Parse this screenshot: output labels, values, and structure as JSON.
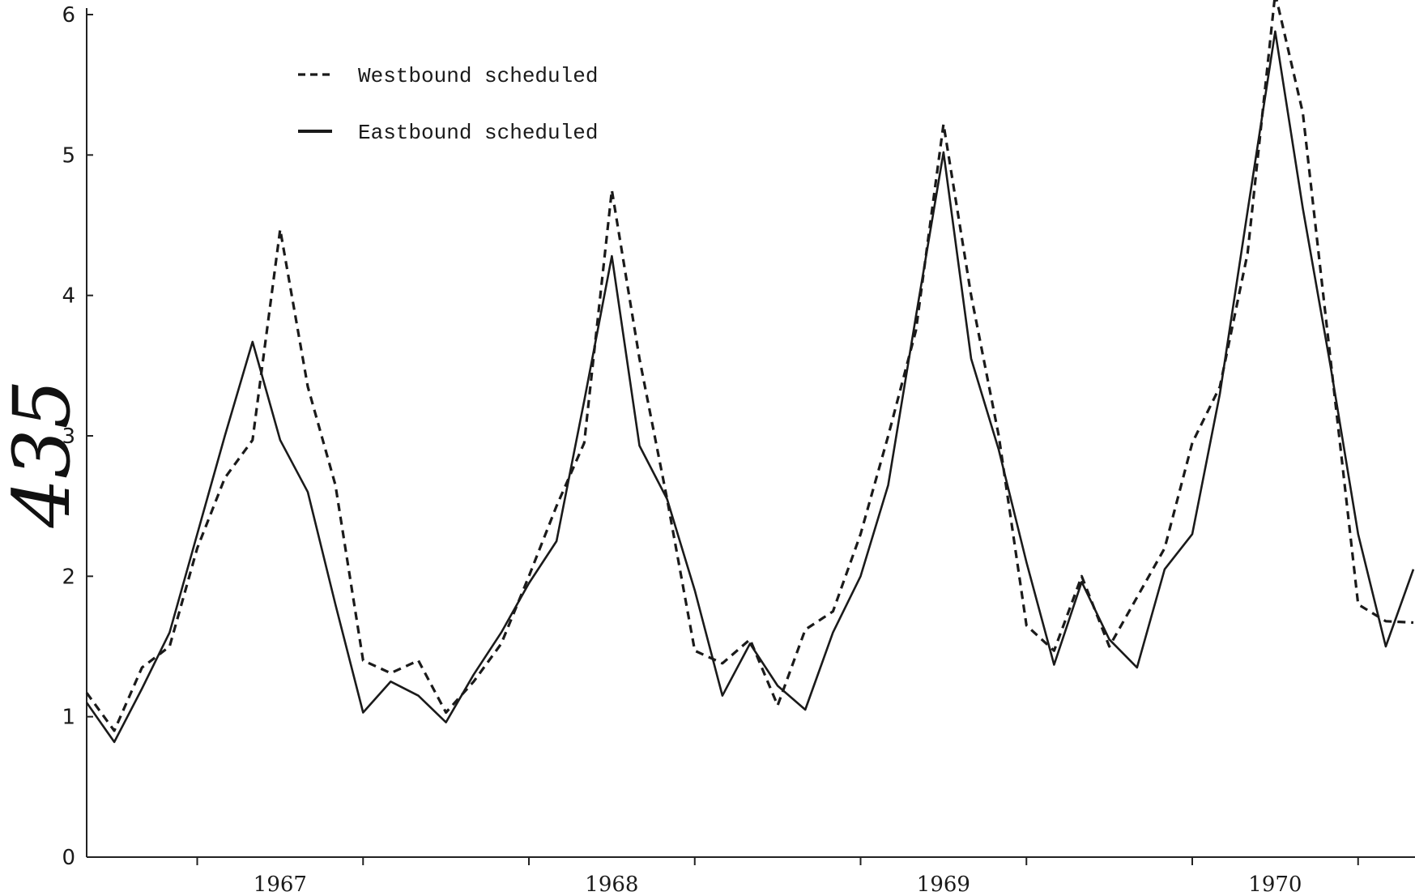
{
  "chart_data": {
    "type": "line",
    "title": "",
    "xlabel": "",
    "ylabel": "",
    "ylim": [
      0,
      6
    ],
    "yticks": [
      "0",
      "1",
      "2",
      "3",
      "4",
      "5",
      "6"
    ],
    "year_labels": [
      "1967",
      "1968",
      "1969",
      "1970"
    ],
    "grid": false,
    "legend_position": "top-left",
    "x_start": "1966-09",
    "x_end": "1970-09",
    "series": [
      {
        "name": "Westbound scheduled",
        "style": "dashed",
        "color": "#1a1a1a",
        "points": [
          [
            "1966-09",
            1.17
          ],
          [
            "1966-10",
            0.9
          ],
          [
            "1966-11",
            1.35
          ],
          [
            "1966-12",
            1.5
          ],
          [
            "1967-01",
            2.2
          ],
          [
            "1967-02",
            2.7
          ],
          [
            "1967-03",
            2.97
          ],
          [
            "1967-04",
            4.47
          ],
          [
            "1967-05",
            3.35
          ],
          [
            "1967-06",
            2.65
          ],
          [
            "1967-07",
            1.4
          ],
          [
            "1967-08",
            1.31
          ],
          [
            "1967-09",
            1.4
          ],
          [
            "1967-10",
            1.03
          ],
          [
            "1967-11",
            1.25
          ],
          [
            "1967-12",
            1.52
          ],
          [
            "1968-01",
            2.0
          ],
          [
            "1968-02",
            2.5
          ],
          [
            "1968-03",
            2.95
          ],
          [
            "1968-04",
            4.75
          ],
          [
            "1968-05",
            3.55
          ],
          [
            "1968-06",
            2.55
          ],
          [
            "1968-07",
            1.47
          ],
          [
            "1968-08",
            1.38
          ],
          [
            "1968-09",
            1.55
          ],
          [
            "1968-10",
            1.08
          ],
          [
            "1968-11",
            1.62
          ],
          [
            "1968-12",
            1.75
          ],
          [
            "1969-01",
            2.3
          ],
          [
            "1969-02",
            3.0
          ],
          [
            "1969-03",
            3.75
          ],
          [
            "1969-04",
            5.22
          ],
          [
            "1969-05",
            4.0
          ],
          [
            "1969-06",
            3.0
          ],
          [
            "1969-07",
            1.65
          ],
          [
            "1969-08",
            1.47
          ],
          [
            "1969-09",
            2.0
          ],
          [
            "1969-10",
            1.5
          ],
          [
            "1969-11",
            1.85
          ],
          [
            "1969-12",
            2.2
          ],
          [
            "1970-01",
            2.95
          ],
          [
            "1970-02",
            3.35
          ],
          [
            "1970-03",
            4.3
          ],
          [
            "1970-04",
            6.15
          ],
          [
            "1970-05",
            5.3
          ],
          [
            "1970-06",
            3.55
          ],
          [
            "1970-07",
            1.8
          ],
          [
            "1970-08",
            1.68
          ],
          [
            "1970-09",
            1.67
          ]
        ]
      },
      {
        "name": "Eastbound scheduled",
        "style": "solid",
        "color": "#1a1a1a",
        "points": [
          [
            "1966-09",
            1.1
          ],
          [
            "1966-10",
            0.82
          ],
          [
            "1966-11",
            1.2
          ],
          [
            "1966-12",
            1.6
          ],
          [
            "1967-01",
            2.3
          ],
          [
            "1967-02",
            3.0
          ],
          [
            "1967-03",
            3.67
          ],
          [
            "1967-04",
            2.97
          ],
          [
            "1967-05",
            2.6
          ],
          [
            "1967-06",
            1.8
          ],
          [
            "1967-07",
            1.03
          ],
          [
            "1967-08",
            1.25
          ],
          [
            "1967-09",
            1.15
          ],
          [
            "1967-10",
            0.96
          ],
          [
            "1967-11",
            1.3
          ],
          [
            "1967-12",
            1.6
          ],
          [
            "1968-01",
            1.95
          ],
          [
            "1968-02",
            2.25
          ],
          [
            "1968-03",
            3.25
          ],
          [
            "1968-04",
            4.28
          ],
          [
            "1968-05",
            2.93
          ],
          [
            "1968-06",
            2.55
          ],
          [
            "1968-07",
            1.9
          ],
          [
            "1968-08",
            1.15
          ],
          [
            "1968-09",
            1.52
          ],
          [
            "1968-10",
            1.22
          ],
          [
            "1968-11",
            1.05
          ],
          [
            "1968-12",
            1.6
          ],
          [
            "1969-01",
            2.0
          ],
          [
            "1969-02",
            2.65
          ],
          [
            "1969-03",
            3.85
          ],
          [
            "1969-04",
            5.02
          ],
          [
            "1969-05",
            3.55
          ],
          [
            "1969-06",
            2.9
          ],
          [
            "1969-07",
            2.1
          ],
          [
            "1969-08",
            1.37
          ],
          [
            "1969-09",
            1.96
          ],
          [
            "1969-10",
            1.55
          ],
          [
            "1969-11",
            1.35
          ],
          [
            "1969-12",
            2.05
          ],
          [
            "1970-01",
            2.3
          ],
          [
            "1970-02",
            3.3
          ],
          [
            "1970-03",
            4.6
          ],
          [
            "1970-04",
            5.88
          ],
          [
            "1970-05",
            4.62
          ],
          [
            "1970-06",
            3.5
          ],
          [
            "1970-07",
            2.3
          ],
          [
            "1970-08",
            1.5
          ],
          [
            "1970-09",
            2.05
          ]
        ]
      }
    ]
  },
  "annotations": {
    "handwritten_page_number": "435"
  }
}
